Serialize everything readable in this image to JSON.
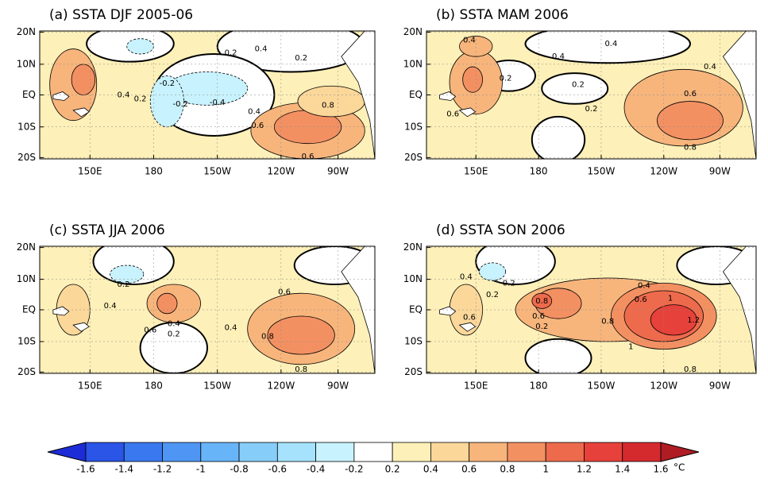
{
  "panels": [
    {
      "title": "(a) SSTA DJF 2005-06",
      "contour_labels": [
        "0.4",
        "0.2",
        "0.2",
        "0.4",
        "0.2",
        "-0.2",
        "-0.2",
        "-0.4",
        "0.4",
        "0.8",
        "0.6",
        "0.6"
      ]
    },
    {
      "title": "(b) SSTA MAM 2006",
      "contour_labels": [
        "0.4",
        "0.4",
        "0.2",
        "0.4",
        "0.4",
        "0.2",
        "0.2",
        "0.6",
        "0.6",
        "0.8"
      ]
    },
    {
      "title": "(c) SSTA JJA 2006",
      "contour_labels": [
        "0.2",
        "0.4",
        "0.6",
        "0.4",
        "0.2",
        "0.6",
        "0.4",
        "0.8",
        "0.8"
      ]
    },
    {
      "title": "(d) SSTA SON 2006",
      "contour_labels": [
        "0.4",
        "0.2",
        "0.2",
        "0.6",
        "0.8",
        "0.4",
        "0.6",
        "0.6",
        "0.2",
        "0.8",
        "1",
        "1.2",
        "1",
        "0.8"
      ]
    }
  ],
  "lat_labels": [
    "20N",
    "10N",
    "EQ",
    "10S",
    "20S"
  ],
  "lon_labels": [
    "150E",
    "180",
    "150W",
    "120W",
    "90W"
  ],
  "colorbar": {
    "ticks": [
      -1.6,
      -1.4,
      -1.2,
      -1,
      -0.8,
      -0.6,
      -0.4,
      -0.2,
      0.2,
      0.4,
      0.6,
      0.8,
      1,
      1.2,
      1.4,
      1.6
    ],
    "unit": "°C",
    "colors": [
      "#1c2cd6",
      "#2a55e6",
      "#3a78f0",
      "#4f96f4",
      "#68b4f8",
      "#86cef9",
      "#a6e2fb",
      "#c8f2fd",
      "#ffffff",
      "#fdf0b8",
      "#fbd79a",
      "#f7b57c",
      "#f39062",
      "#ee6a4c",
      "#e6413a",
      "#d42a2e",
      "#b01c24"
    ]
  }
}
